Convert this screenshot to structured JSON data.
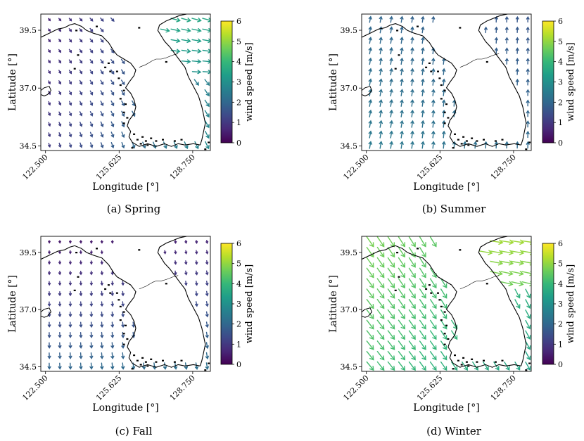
{
  "colors": {
    "viridis": [
      "#440154",
      "#482878",
      "#3e4989",
      "#31688e",
      "#26828e",
      "#1f9e89",
      "#35b779",
      "#6ece58",
      "#b5de2b",
      "#fde725"
    ],
    "coastline": "#000000",
    "border": "#000000",
    "background": "#ffffff"
  },
  "chart_data": [
    {
      "type": "quiver",
      "caption": "(a) Spring",
      "xlabel": "Longitude [°]",
      "ylabel": "Latitude [°]",
      "xticks": [
        "122.500",
        "125.625",
        "128.750"
      ],
      "yticks": [
        "34.5",
        "37.0",
        "39.5"
      ],
      "xlim": [
        122.3,
        129.5
      ],
      "ylim": [
        34.3,
        40.2
      ],
      "colorbar": {
        "label": "wind speed [m/s]",
        "ticks": [
          "0",
          "1",
          "2",
          "3",
          "4",
          "5",
          "6"
        ],
        "range": [
          0,
          6
        ],
        "colormap": "viridis"
      },
      "field": {
        "summary": "weak northwesterly flow over the sea, stronger westerly over the north-east",
        "direction_deg": 140,
        "speed_min": 0.4,
        "speed_max": 3.3
      }
    },
    {
      "type": "quiver",
      "caption": "(b) Summer",
      "xlabel": "Longitude [°]",
      "ylabel": "Latitude [°]",
      "xticks": [
        "122.500",
        "125.625",
        "128.750"
      ],
      "yticks": [
        "34.5",
        "37.0",
        "39.5"
      ],
      "xlim": [
        122.3,
        129.5
      ],
      "ylim": [
        34.3,
        40.2
      ],
      "colorbar": {
        "label": "wind speed [m/s]",
        "ticks": [
          "0",
          "1",
          "2",
          "3",
          "4",
          "5",
          "6"
        ],
        "range": [
          0,
          6
        ],
        "colormap": "viridis"
      },
      "field": {
        "summary": "southerly to south-westerly flow across the domain",
        "direction_deg": 85,
        "speed_min": 1.5,
        "speed_max": 2.5
      }
    },
    {
      "type": "quiver",
      "caption": "(c) Fall",
      "xlabel": "Longitude [°]",
      "ylabel": "Latitude [°]",
      "xticks": [
        "122.500",
        "125.625",
        "128.750"
      ],
      "yticks": [
        "34.5",
        "37.0",
        "39.5"
      ],
      "xlim": [
        122.3,
        129.5
      ],
      "ylim": [
        34.3,
        40.2
      ],
      "colorbar": {
        "label": "wind speed [m/s]",
        "ticks": [
          "0",
          "1",
          "2",
          "3",
          "4",
          "5",
          "6"
        ],
        "range": [
          0,
          6
        ],
        "colormap": "viridis"
      },
      "field": {
        "summary": "weak northerly flow, strengthening towards the south",
        "direction_deg": 260,
        "speed_min": 0.3,
        "speed_max": 2.2
      }
    },
    {
      "type": "quiver",
      "caption": "(d) Winter",
      "xlabel": "Longitude [°]",
      "ylabel": "Latitude [°]",
      "xticks": [
        "122.500",
        "125.625",
        "128.750"
      ],
      "yticks": [
        "34.5",
        "37.0",
        "39.5"
      ],
      "xlim": [
        122.3,
        129.5
      ],
      "ylim": [
        34.3,
        40.2
      ],
      "colorbar": {
        "label": "wind speed [m/s]",
        "ticks": [
          "0",
          "1",
          "2",
          "3",
          "4",
          "5",
          "6"
        ],
        "range": [
          0,
          6
        ],
        "colormap": "viridis"
      },
      "field": {
        "summary": "strong north-westerly monsoon flow over the sea, strongest in the north-east",
        "direction_deg": 305,
        "speed_min": 2.0,
        "speed_max": 5.5
      }
    }
  ]
}
